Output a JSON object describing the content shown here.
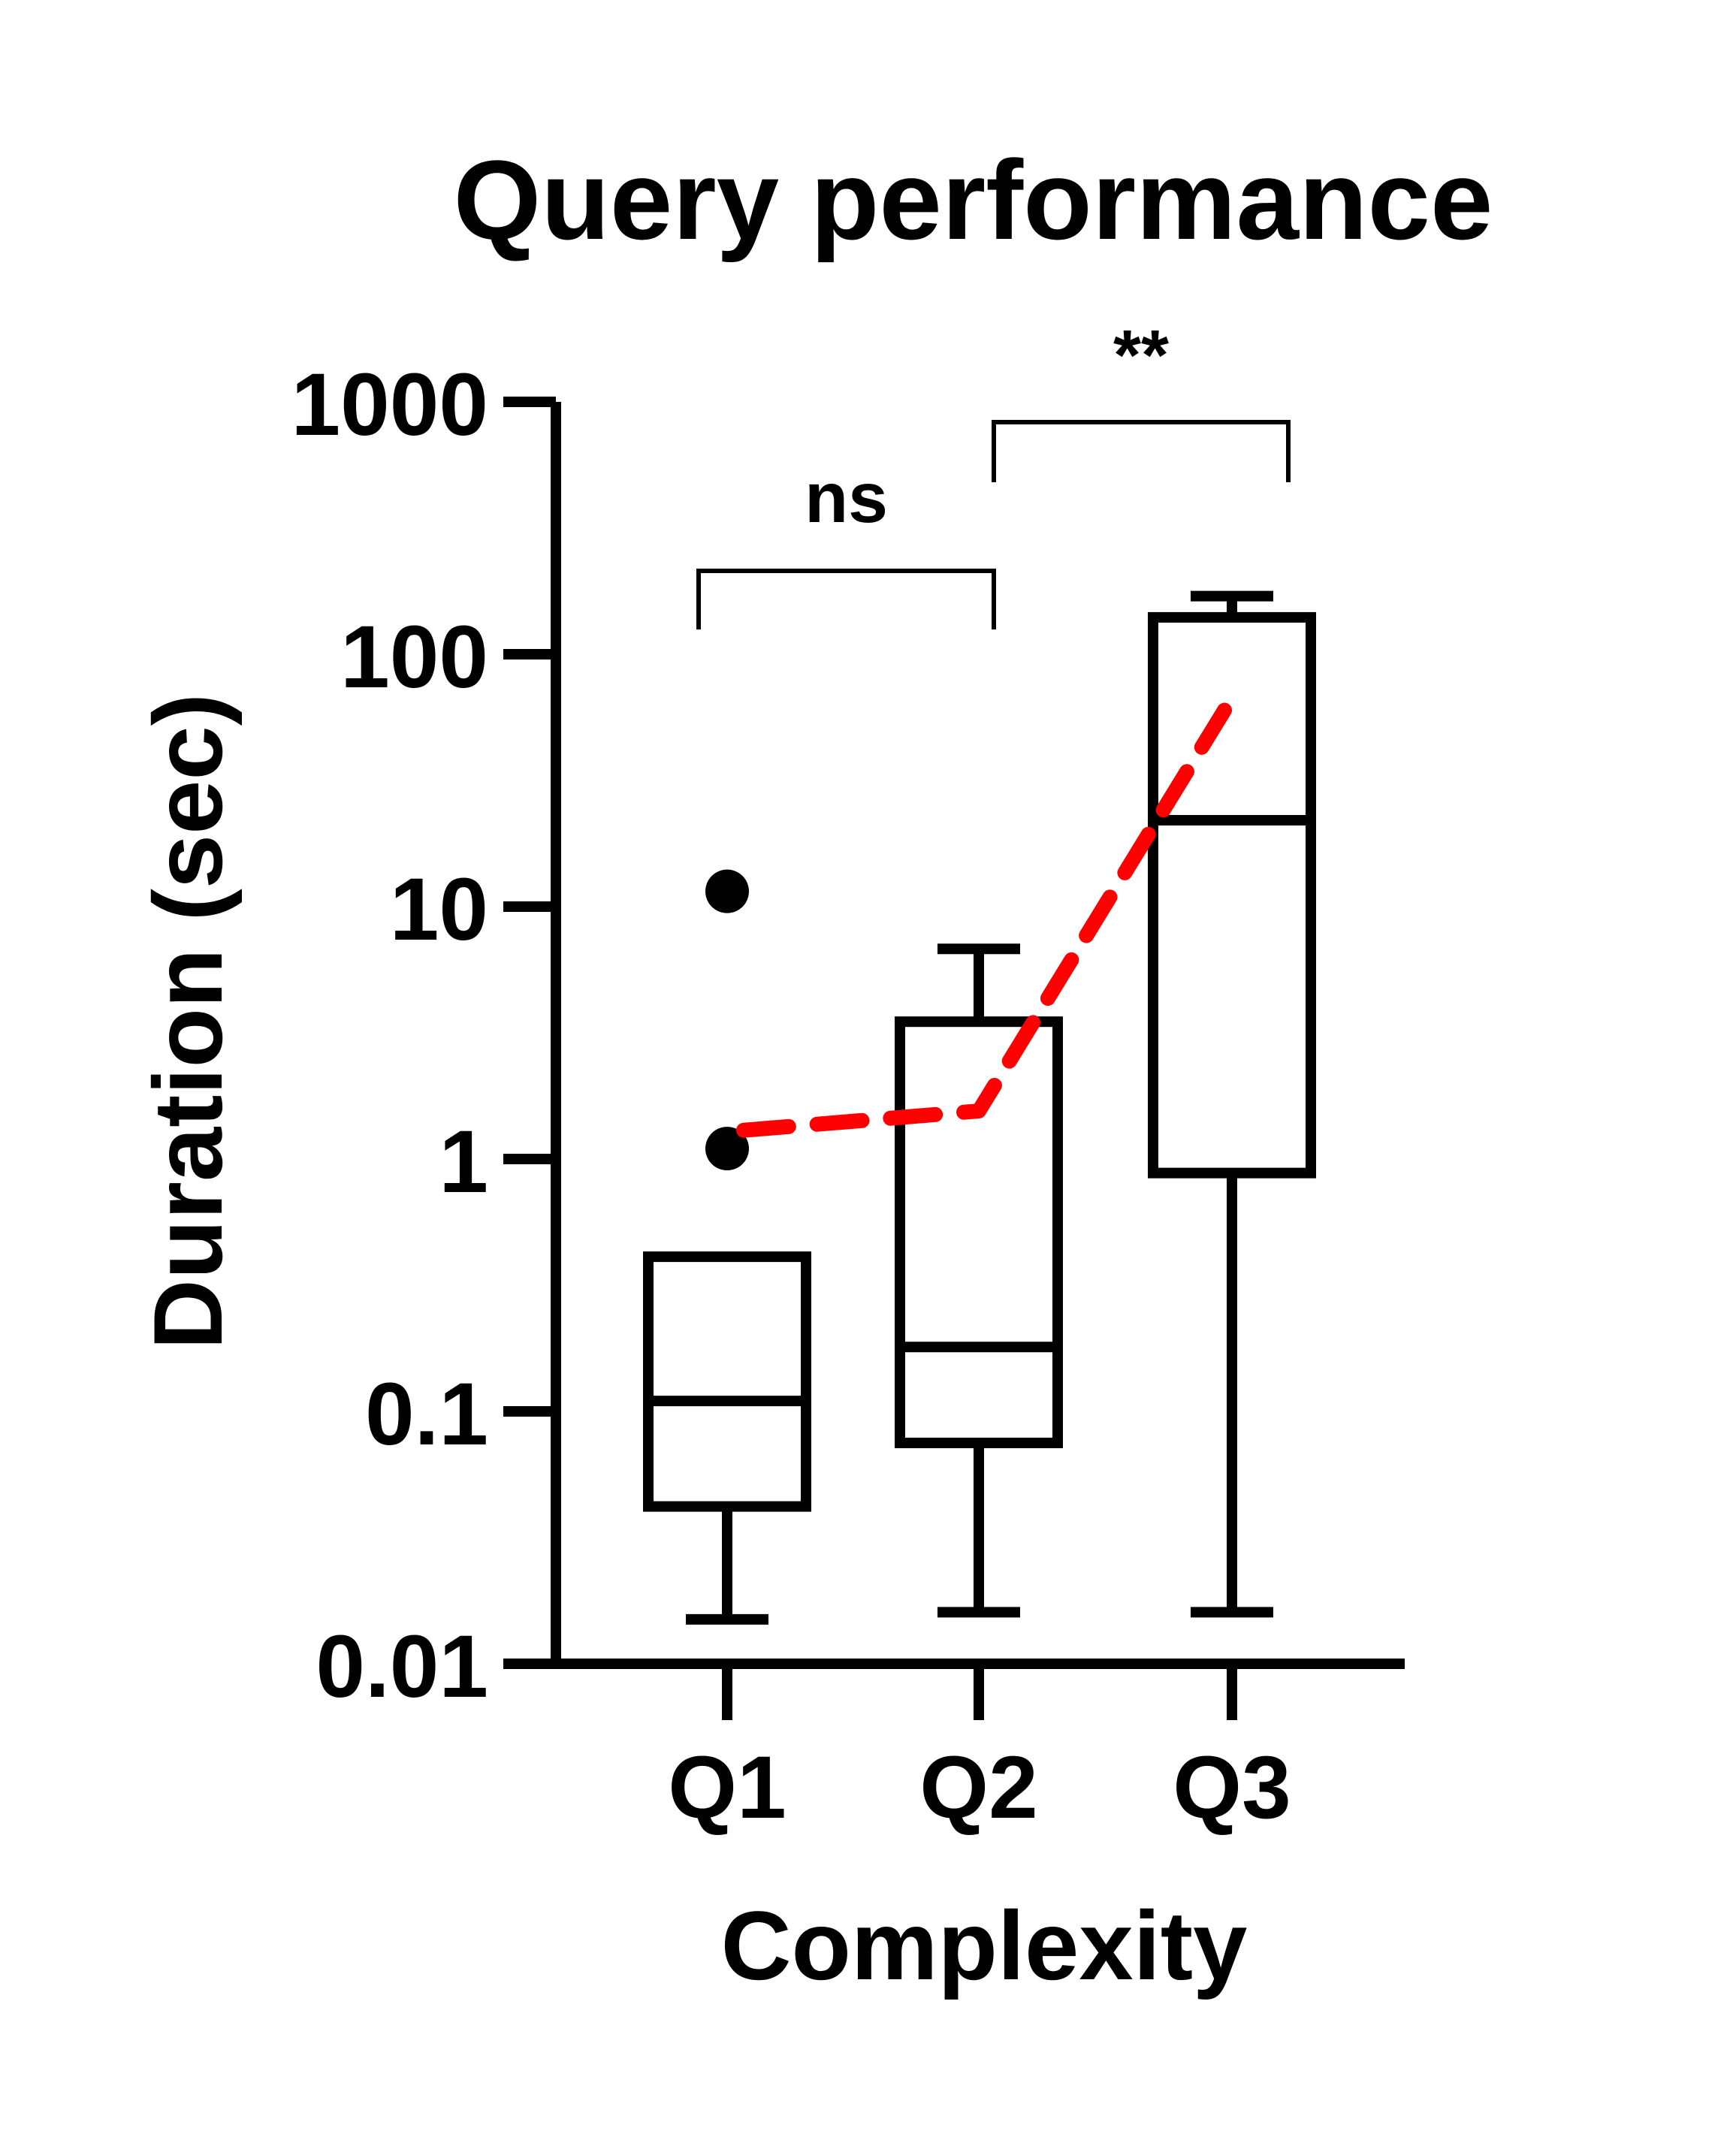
{
  "chart_data": {
    "type": "box",
    "title": "Query performance",
    "xlabel": "Complexity",
    "ylabel": "Duration (sec)",
    "y_scale": "log",
    "ylim": [
      0.01,
      1000
    ],
    "y_ticks": [
      {
        "value": 0.01,
        "label": "0.01"
      },
      {
        "value": 0.1,
        "label": "0.1"
      },
      {
        "value": 1,
        "label": "1"
      },
      {
        "value": 10,
        "label": "10"
      },
      {
        "value": 100,
        "label": "100"
      },
      {
        "value": 1000,
        "label": "1000"
      }
    ],
    "categories": [
      "Q1",
      "Q2",
      "Q3"
    ],
    "boxes": [
      {
        "category": "Q1",
        "whisker_low": 0.015,
        "q1": 0.042,
        "median": 0.11,
        "q3": 0.41,
        "whisker_high": 0.41,
        "outliers": [
          1.1,
          11.5
        ]
      },
      {
        "category": "Q2",
        "whisker_low": 0.016,
        "q1": 0.075,
        "median": 0.18,
        "q3": 3.5,
        "whisker_high": 6.8,
        "outliers": []
      },
      {
        "category": "Q3",
        "whisker_low": 0.016,
        "q1": 0.88,
        "median": 22,
        "q3": 140,
        "whisker_high": 170,
        "outliers": []
      }
    ],
    "trend_line": {
      "color": "#ff0000",
      "style": "dashed",
      "points": [
        {
          "x": "Q1",
          "y": 1.3
        },
        {
          "x": "Q2",
          "y": 1.55
        },
        {
          "x": "Q3",
          "y": 60
        }
      ]
    },
    "significance": [
      {
        "from": "Q1",
        "to": "Q2",
        "label": "ns"
      },
      {
        "from": "Q2",
        "to": "Q3",
        "label": "**"
      }
    ],
    "legend": "none",
    "grid": false
  }
}
